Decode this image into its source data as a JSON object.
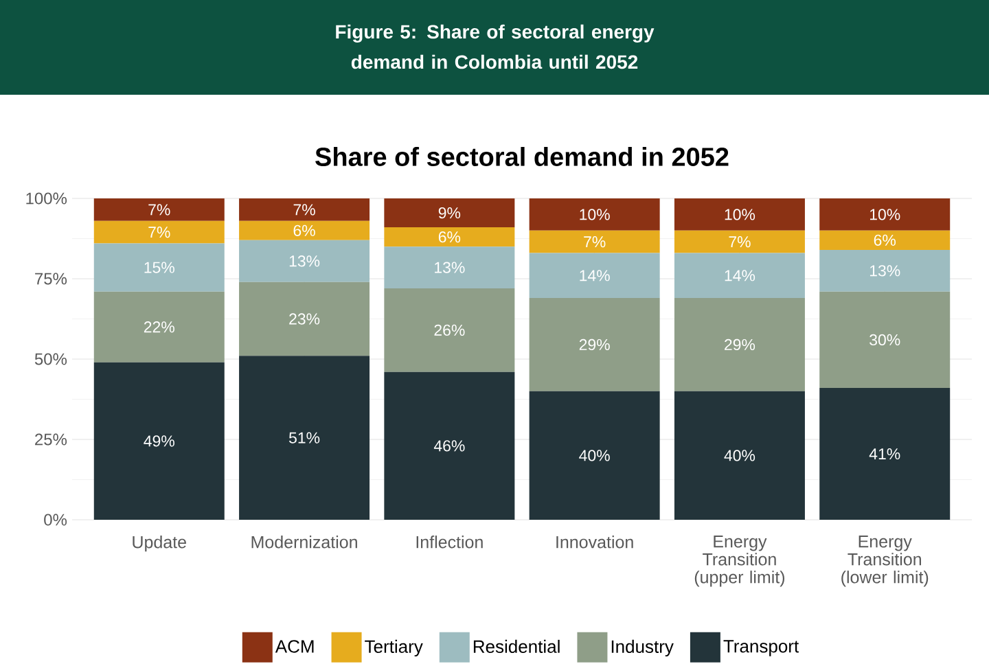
{
  "chart_data": {
    "type": "bar",
    "title": "Figure 5: Share of sectoral energy demand in Colombia until 2052",
    "subtitle": "Share of sectoral demand in 2052",
    "categories": [
      "Update",
      "Modernization",
      "Inflection",
      "Innovation",
      "Energy Transition (upper limit)",
      "Energy Transition (lower limit)"
    ],
    "stacked": true,
    "ylim": [
      0,
      100
    ],
    "yticks": [
      {
        "value": 0,
        "label": "0%"
      },
      {
        "value": 25,
        "label": "25%"
      },
      {
        "value": 50,
        "label": "50%"
      },
      {
        "value": 75,
        "label": "75%"
      },
      {
        "value": 100,
        "label": "100%"
      }
    ],
    "grid": true,
    "legend": "bottom",
    "series": [
      {
        "name": "Transport",
        "color": "#23343a",
        "values": [
          49,
          51,
          46,
          40,
          40,
          41
        ],
        "value_labels": [
          "49%",
          "51%",
          "46%",
          "40%",
          "40%",
          "41%"
        ]
      },
      {
        "name": "Industry",
        "color": "#8f9e88",
        "values": [
          22,
          23,
          26,
          29,
          29,
          30
        ],
        "value_labels": [
          "22%",
          "23%",
          "26%",
          "29%",
          "29%",
          "30%"
        ]
      },
      {
        "name": "Residential",
        "color": "#9dbcc0",
        "values": [
          15,
          13,
          13,
          14,
          14,
          13
        ],
        "value_labels": [
          "15%",
          "13%",
          "13%",
          "14%",
          "14%",
          "13%"
        ]
      },
      {
        "name": "Tertiary",
        "color": "#e6ac1e",
        "values": [
          7,
          6,
          6,
          7,
          7,
          6
        ],
        "value_labels": [
          "7%",
          "6%",
          "6%",
          "7%",
          "7%",
          "6%"
        ]
      },
      {
        "name": "ACM",
        "color": "#8b3214",
        "values": [
          7,
          7,
          9,
          10,
          10,
          10
        ],
        "value_labels": [
          "7%",
          "7%",
          "9%",
          "10%",
          "10%",
          "10%"
        ]
      }
    ]
  }
}
